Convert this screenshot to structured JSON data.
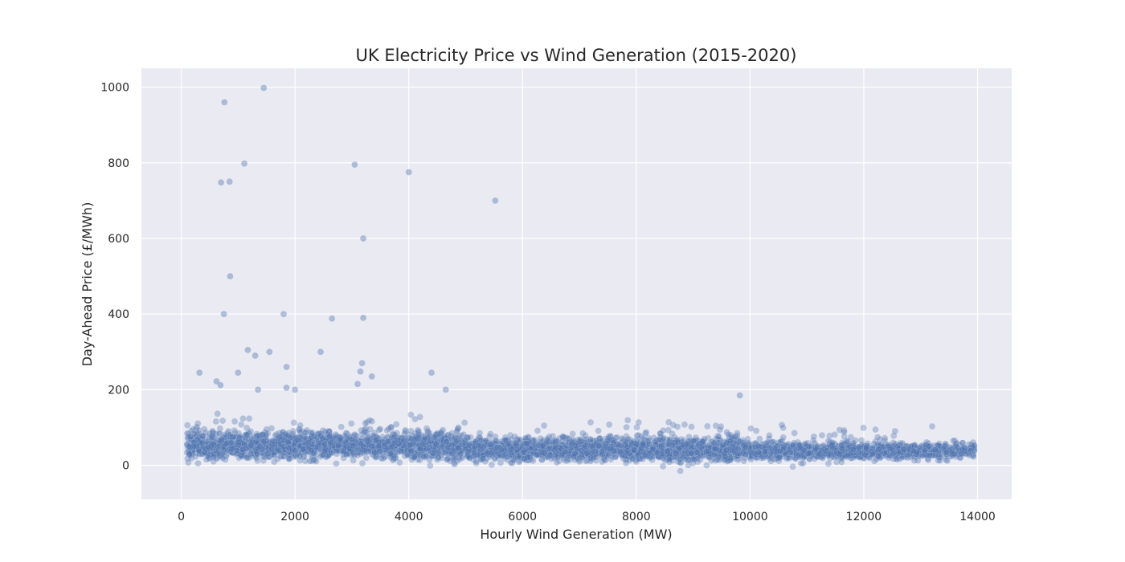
{
  "chart_data": {
    "type": "scatter",
    "title": "UK Electricity Price vs Wind Generation (2015-2020)",
    "xlabel": "Hourly Wind Generation (MW)",
    "ylabel": "Day-Ahead Price (£/MWh)",
    "xlim": [
      -700,
      14600
    ],
    "ylim": [
      -90,
      1050
    ],
    "xticks": [
      0,
      2000,
      4000,
      6000,
      8000,
      10000,
      12000,
      14000
    ],
    "yticks": [
      0,
      200,
      400,
      600,
      800,
      1000
    ],
    "grid": true,
    "legend": "none",
    "point_color": "#4c72b0",
    "background_color": "#eaeaf2",
    "series": [
      {
        "x_range": [
          0,
          14000
        ],
        "typical_price_range": [
          -40,
          150
        ],
        "central_price": 45
      }
    ],
    "outliers": [
      {
        "x": 1450,
        "y": 998
      },
      {
        "x": 760,
        "y": 960
      },
      {
        "x": 1110,
        "y": 798
      },
      {
        "x": 3050,
        "y": 795
      },
      {
        "x": 4000,
        "y": 775
      },
      {
        "x": 700,
        "y": 748
      },
      {
        "x": 850,
        "y": 750
      },
      {
        "x": 5520,
        "y": 700
      },
      {
        "x": 3200,
        "y": 600
      },
      {
        "x": 860,
        "y": 500
      },
      {
        "x": 750,
        "y": 400
      },
      {
        "x": 1800,
        "y": 400
      },
      {
        "x": 2650,
        "y": 388
      },
      {
        "x": 3200,
        "y": 390
      },
      {
        "x": 1170,
        "y": 305
      },
      {
        "x": 1550,
        "y": 300
      },
      {
        "x": 2450,
        "y": 300
      },
      {
        "x": 1300,
        "y": 290
      },
      {
        "x": 3180,
        "y": 270
      },
      {
        "x": 1850,
        "y": 260
      },
      {
        "x": 3150,
        "y": 248
      },
      {
        "x": 4400,
        "y": 245
      },
      {
        "x": 320,
        "y": 245
      },
      {
        "x": 1000,
        "y": 245
      },
      {
        "x": 3350,
        "y": 235
      },
      {
        "x": 620,
        "y": 222
      },
      {
        "x": 690,
        "y": 212
      },
      {
        "x": 3100,
        "y": 215
      },
      {
        "x": 4650,
        "y": 200
      },
      {
        "x": 9820,
        "y": 185
      },
      {
        "x": 1850,
        "y": 205
      },
      {
        "x": 1350,
        "y": 200
      },
      {
        "x": 2000,
        "y": 200
      }
    ]
  }
}
